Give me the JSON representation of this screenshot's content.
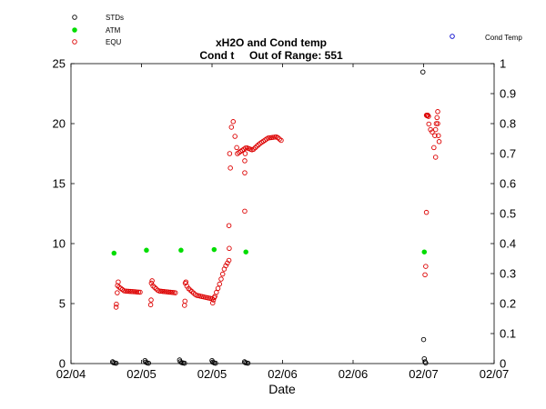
{
  "chart_data": {
    "type": "scatter",
    "title": "xH2O and Cond temp",
    "subtitle": "Cond t     Out of Range: 551",
    "xlabel": "Date",
    "ylabel": "",
    "xlim": [
      0,
      3
    ],
    "ylim": [
      0,
      25
    ],
    "y2lim": [
      0,
      1
    ],
    "x_tick_values": [
      0,
      0.5,
      1,
      1.5,
      2,
      2.5,
      3
    ],
    "x_tick_labels": [
      "02/04",
      "02/05",
      "02/05",
      "02/06",
      "02/06",
      "02/07",
      "02/07"
    ],
    "y_tick_values": [
      0,
      5,
      10,
      15,
      20,
      25
    ],
    "y_tick_labels": [
      "0",
      "5",
      "10",
      "15",
      "20",
      "25"
    ],
    "y2_tick_values": [
      0,
      0.1,
      0.2,
      0.3,
      0.4,
      0.5,
      0.6,
      0.7,
      0.8,
      0.9,
      1
    ],
    "y2_tick_labels": [
      "0",
      "0.1",
      "0.2",
      "0.3",
      "0.4",
      "0.5",
      "0.6",
      "0.7",
      "0.8",
      "0.9",
      "1"
    ],
    "grid": false,
    "legend_position": "top-left",
    "secondary_legend_position": "top-right",
    "series": [
      {
        "name": "STDs",
        "marker": "open-circle",
        "color": "#000000",
        "axis": "left",
        "points": [
          [
            0.295,
            0.15
          ],
          [
            0.3,
            0.08
          ],
          [
            0.31,
            0.05
          ],
          [
            0.32,
            0.03
          ],
          [
            0.525,
            0.25
          ],
          [
            0.53,
            0.12
          ],
          [
            0.54,
            0.06
          ],
          [
            0.55,
            0.03
          ],
          [
            0.77,
            0.3
          ],
          [
            0.775,
            0.15
          ],
          [
            0.785,
            0.08
          ],
          [
            0.795,
            0.05
          ],
          [
            0.805,
            0.03
          ],
          [
            1.0,
            0.25
          ],
          [
            1.005,
            0.12
          ],
          [
            1.015,
            0.06
          ],
          [
            1.025,
            0.03
          ],
          [
            1.23,
            0.15
          ],
          [
            1.235,
            0.08
          ],
          [
            1.245,
            0.05
          ],
          [
            1.255,
            0.03
          ],
          [
            2.495,
            24.3
          ],
          [
            2.5,
            2.0
          ],
          [
            2.505,
            0.4
          ],
          [
            2.51,
            0.15
          ],
          [
            2.515,
            0.05
          ]
        ]
      },
      {
        "name": "ATM",
        "marker": "filled-circle",
        "color": "#00dd00",
        "axis": "left",
        "points": [
          [
            0.305,
            9.2
          ],
          [
            0.535,
            9.45
          ],
          [
            0.78,
            9.45
          ],
          [
            1.015,
            9.5
          ],
          [
            1.24,
            9.3
          ],
          [
            2.505,
            9.3
          ]
        ]
      },
      {
        "name": "EQU",
        "marker": "open-circle",
        "color": "#dd0000",
        "axis": "left",
        "segments": [
          {
            "x0": 0.33,
            "x1": 0.49,
            "keys": [
              [
                0,
                6.5
              ],
              [
                0.05,
                6.4
              ],
              [
                0.3,
                6.05
              ],
              [
                1,
                5.95
              ]
            ]
          },
          {
            "x0": 0.57,
            "x1": 0.74,
            "keys": [
              [
                0,
                6.7
              ],
              [
                0.05,
                6.5
              ],
              [
                0.3,
                6.05
              ],
              [
                1,
                5.9
              ]
            ]
          },
          {
            "x0": 0.81,
            "x1": 1.0,
            "keys": [
              [
                0,
                6.7
              ],
              [
                0.1,
                6.3
              ],
              [
                0.4,
                5.7
              ],
              [
                1,
                5.4
              ]
            ]
          },
          {
            "x0": 1.02,
            "x1": 1.12,
            "keys": [
              [
                0,
                5.6
              ],
              [
                0.3,
                6.5
              ],
              [
                0.7,
                8.0
              ],
              [
                1,
                8.6
              ]
            ]
          },
          {
            "x0": 1.125,
            "x1": 1.175,
            "keys": [
              [
                0,
                17.5
              ],
              [
                0.2,
                19.5
              ],
              [
                0.45,
                20.5
              ],
              [
                0.6,
                19.5
              ],
              [
                1,
                18.0
              ]
            ]
          },
          {
            "x0": 1.18,
            "x1": 1.49,
            "keys": [
              [
                0,
                17.5
              ],
              [
                0.2,
                18.0
              ],
              [
                0.35,
                17.8
              ],
              [
                0.5,
                18.3
              ],
              [
                0.7,
                18.8
              ],
              [
                0.9,
                18.9
              ],
              [
                1,
                18.6
              ]
            ]
          },
          {
            "x0": 2.525,
            "x1": 2.585,
            "keys": [
              [
                0,
                20.7
              ],
              [
                0.3,
                19.6
              ],
              [
                0.6,
                19.3
              ],
              [
                0.8,
                18.0
              ],
              [
                1,
                17.2
              ]
            ]
          }
        ],
        "points": [
          [
            0.32,
            4.7
          ],
          [
            0.322,
            4.95
          ],
          [
            0.328,
            5.9
          ],
          [
            0.335,
            6.8
          ],
          [
            0.565,
            4.9
          ],
          [
            0.568,
            5.3
          ],
          [
            0.575,
            6.9
          ],
          [
            0.805,
            4.85
          ],
          [
            0.808,
            5.2
          ],
          [
            0.815,
            6.8
          ],
          [
            1.005,
            5.05
          ],
          [
            1.01,
            5.3
          ],
          [
            1.015,
            5.5
          ],
          [
            1.122,
            9.6
          ],
          [
            1.12,
            11.5
          ],
          [
            1.13,
            16.3
          ],
          [
            1.232,
            12.7
          ],
          [
            1.232,
            15.9
          ],
          [
            1.232,
            16.9
          ],
          [
            1.235,
            17.5
          ],
          [
            2.51,
            7.4
          ],
          [
            2.515,
            8.1
          ],
          [
            2.52,
            12.6
          ],
          [
            2.52,
            20.7
          ],
          [
            2.525,
            20.65
          ],
          [
            2.53,
            20.7
          ],
          [
            2.535,
            20.6
          ],
          [
            2.58,
            19.0
          ],
          [
            2.585,
            19.5
          ],
          [
            2.59,
            20.0
          ],
          [
            2.595,
            20.5
          ],
          [
            2.6,
            21.0
          ],
          [
            2.6,
            20.0
          ],
          [
            2.605,
            19.0
          ],
          [
            2.61,
            18.5
          ]
        ]
      },
      {
        "name": "Cond Temp",
        "marker": "open-circle",
        "color": "#0000cc",
        "axis": "right",
        "points": []
      }
    ]
  }
}
